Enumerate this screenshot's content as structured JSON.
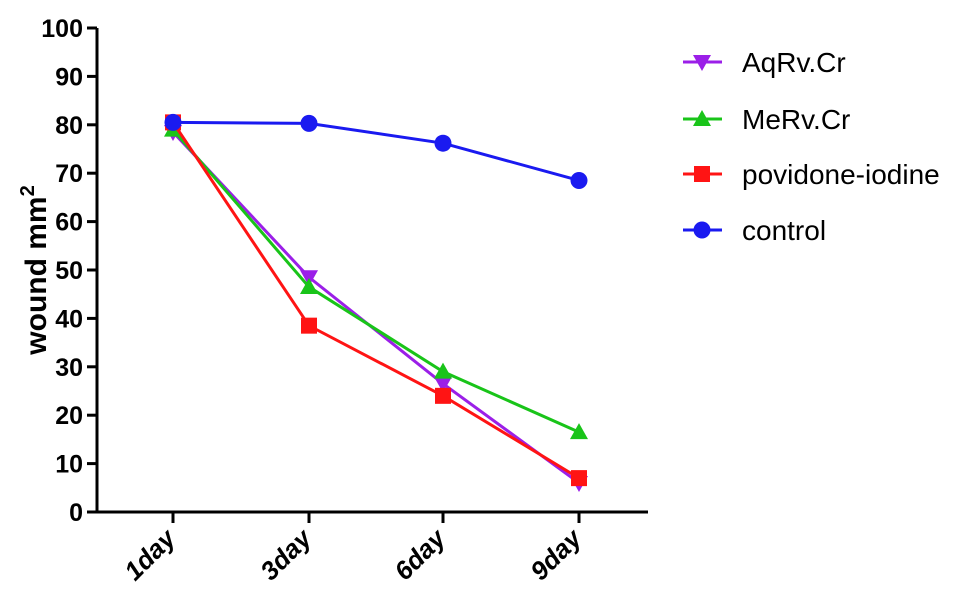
{
  "chart_data": {
    "type": "line",
    "categories": [
      "1day",
      "3day",
      "6day",
      "9day"
    ],
    "ylabel": "wound mm",
    "ylabel_sup": "2",
    "xlabel": "",
    "title": "",
    "ylim": [
      0,
      100
    ],
    "yticks": [
      0,
      10,
      20,
      30,
      40,
      50,
      60,
      70,
      80,
      90,
      100
    ],
    "grid": false,
    "legend_position": "top-right",
    "series": [
      {
        "name": "AqRv.Cr",
        "color": "#9B1FE8",
        "marker": "triangle-down",
        "values": [
          78.5,
          48.5,
          26.5,
          6.0
        ]
      },
      {
        "name": "MeRv.Cr",
        "color": "#19C419",
        "marker": "triangle-up",
        "values": [
          79.0,
          46.5,
          29.0,
          16.5
        ]
      },
      {
        "name": "povidone-iodine",
        "color": "#FF1414",
        "marker": "square",
        "values": [
          80.5,
          38.5,
          24.0,
          7.0
        ]
      },
      {
        "name": "control",
        "color": "#1A1AF0",
        "marker": "circle",
        "values": [
          80.5,
          80.3,
          76.2,
          68.5
        ]
      }
    ]
  }
}
